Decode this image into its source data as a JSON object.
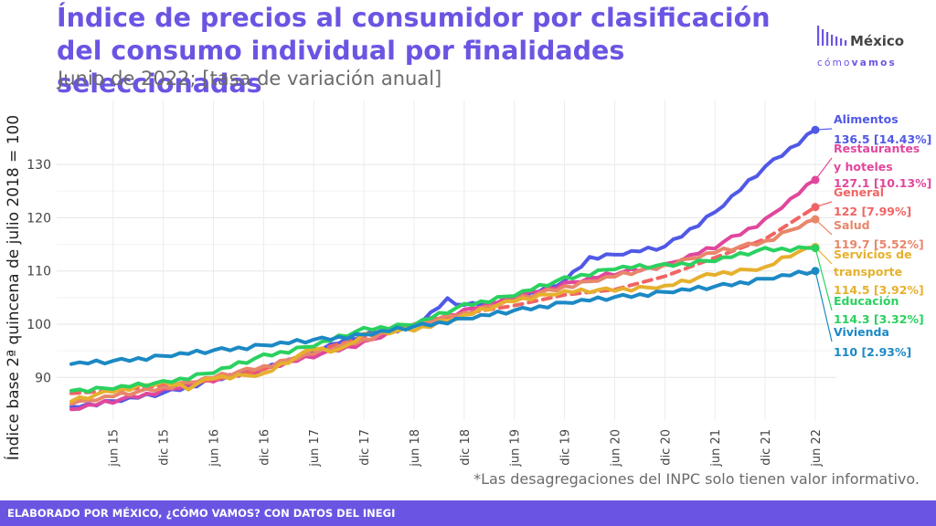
{
  "header": {
    "title": "Índice de precios al consumidor por clasificación del consumo individual por finalidades seleccionadas",
    "subtitle": "Junio de 2022; [tasa de variación anual]"
  },
  "logo": {
    "name": "México",
    "tag_light": "cómo",
    "tag_bold": "vamos",
    "color": "#6A55E3"
  },
  "note": "*Las desagregaciones del INPC solo tienen valor informativo.",
  "footer": {
    "text": "ELABORADO POR MÉXICO, ¿CÓMO VAMOS? CON DATOS DEL INEGI",
    "color": "#6A55E3"
  },
  "chart_data": {
    "type": "line",
    "ylabel": "Índice base 2ª quincena de julio 2018 = 100",
    "xlabel": "",
    "x_ticks": [
      "jun 15",
      "dic 15",
      "jun 16",
      "dic 16",
      "jun 17",
      "dic 17",
      "jun 18",
      "dic 18",
      "jun 19",
      "dic 19",
      "jun 20",
      "dic 20",
      "jun 21",
      "dic 21",
      "jun 22"
    ],
    "y_ticks": [
      90,
      100,
      110,
      120,
      130
    ],
    "ylim": [
      83,
      139
    ],
    "x_range": [
      "2015-01",
      "2022-06"
    ],
    "grid": true,
    "series": [
      {
        "name": "Alimentos",
        "color": "#5059E6",
        "dashed": false,
        "end_label": "136.5 [14.43%]",
        "anchors": [
          [
            "2015-01",
            84.5
          ],
          [
            "2015-06",
            85.5
          ],
          [
            "2015-12",
            87.0
          ],
          [
            "2016-06",
            89.5
          ],
          [
            "2016-12",
            91.5
          ],
          [
            "2017-06",
            95.0
          ],
          [
            "2017-12",
            98.0
          ],
          [
            "2018-06",
            99.5
          ],
          [
            "2018-10",
            104.5
          ],
          [
            "2018-12",
            103.5
          ],
          [
            "2019-06",
            104.5
          ],
          [
            "2019-12",
            108.0
          ],
          [
            "2020-03",
            112.5
          ],
          [
            "2020-06",
            113.0
          ],
          [
            "2020-12",
            114.5
          ],
          [
            "2021-06",
            121.0
          ],
          [
            "2021-12",
            129.5
          ],
          [
            "2022-06",
            136.5
          ]
        ]
      },
      {
        "name": "Restaurantes y hoteles",
        "color": "#E0479C",
        "dashed": false,
        "end_label": "127.1 [10.13%]",
        "anchors": [
          [
            "2015-01",
            84.0
          ],
          [
            "2015-06",
            85.5
          ],
          [
            "2015-12",
            87.5
          ],
          [
            "2016-06",
            89.5
          ],
          [
            "2016-12",
            91.5
          ],
          [
            "2017-06",
            94.0
          ],
          [
            "2017-12",
            96.5
          ],
          [
            "2018-06",
            100.0
          ],
          [
            "2018-12",
            102.5
          ],
          [
            "2019-06",
            105.0
          ],
          [
            "2019-12",
            107.5
          ],
          [
            "2020-06",
            109.5
          ],
          [
            "2020-12",
            111.0
          ],
          [
            "2021-06",
            114.5
          ],
          [
            "2021-12",
            119.5
          ],
          [
            "2022-06",
            127.1
          ]
        ]
      },
      {
        "name": "General",
        "color": "#F06464",
        "dashed": true,
        "end_label": "122 [7.99%]",
        "anchors": [
          [
            "2015-01",
            87.0
          ],
          [
            "2015-06",
            87.5
          ],
          [
            "2015-12",
            88.5
          ],
          [
            "2016-06",
            89.5
          ],
          [
            "2016-12",
            91.5
          ],
          [
            "2017-06",
            95.0
          ],
          [
            "2017-12",
            97.5
          ],
          [
            "2018-06",
            100.0
          ],
          [
            "2018-12",
            102.0
          ],
          [
            "2019-06",
            103.5
          ],
          [
            "2019-12",
            105.5
          ],
          [
            "2020-06",
            106.5
          ],
          [
            "2020-12",
            109.0
          ],
          [
            "2021-06",
            112.5
          ],
          [
            "2021-12",
            116.0
          ],
          [
            "2022-06",
            122.0
          ]
        ]
      },
      {
        "name": "Salud",
        "color": "#E8866A",
        "dashed": false,
        "end_label": "119.7 [5.52%]",
        "anchors": [
          [
            "2015-01",
            85.0
          ],
          [
            "2015-06",
            86.5
          ],
          [
            "2015-12",
            88.0
          ],
          [
            "2016-06",
            90.0
          ],
          [
            "2016-12",
            92.0
          ],
          [
            "2017-06",
            94.5
          ],
          [
            "2017-12",
            97.0
          ],
          [
            "2018-06",
            100.0
          ],
          [
            "2018-12",
            102.0
          ],
          [
            "2019-06",
            104.5
          ],
          [
            "2019-12",
            107.0
          ],
          [
            "2020-06",
            109.0
          ],
          [
            "2020-12",
            111.0
          ],
          [
            "2021-06",
            113.5
          ],
          [
            "2021-12",
            115.5
          ],
          [
            "2022-06",
            119.7
          ]
        ]
      },
      {
        "name": "Servicios de transporte",
        "color": "#E6B02E",
        "dashed": false,
        "end_label": "114.5 [3.92%]",
        "anchors": [
          [
            "2015-01",
            85.5
          ],
          [
            "2015-06",
            87.5
          ],
          [
            "2015-12",
            89.0
          ],
          [
            "2016-03",
            88.0
          ],
          [
            "2016-06",
            90.0
          ],
          [
            "2016-12",
            90.5
          ],
          [
            "2017-06",
            95.5
          ],
          [
            "2017-09",
            95.0
          ],
          [
            "2017-12",
            98.0
          ],
          [
            "2018-06",
            99.0
          ],
          [
            "2018-12",
            101.5
          ],
          [
            "2019-06",
            104.5
          ],
          [
            "2019-12",
            106.0
          ],
          [
            "2020-06",
            106.5
          ],
          [
            "2020-12",
            107.0
          ],
          [
            "2021-06",
            109.5
          ],
          [
            "2021-09",
            110.0
          ],
          [
            "2021-12",
            110.5
          ],
          [
            "2022-03",
            113.0
          ],
          [
            "2022-06",
            114.5
          ]
        ]
      },
      {
        "name": "Educación",
        "color": "#2BD160",
        "dashed": false,
        "end_label": "114.3 [3.32%]",
        "anchors": [
          [
            "2015-01",
            87.5
          ],
          [
            "2015-06",
            88.0
          ],
          [
            "2015-12",
            89.0
          ],
          [
            "2016-06",
            91.0
          ],
          [
            "2016-12",
            94.0
          ],
          [
            "2017-06",
            96.0
          ],
          [
            "2017-12",
            99.0
          ],
          [
            "2018-06",
            100.0
          ],
          [
            "2018-12",
            103.5
          ],
          [
            "2019-06",
            105.5
          ],
          [
            "2019-12",
            108.5
          ],
          [
            "2020-06",
            110.5
          ],
          [
            "2020-12",
            111.0
          ],
          [
            "2021-06",
            112.0
          ],
          [
            "2021-12",
            114.0
          ],
          [
            "2022-06",
            114.3
          ]
        ]
      },
      {
        "name": "Vivienda",
        "color": "#1C89C4",
        "dashed": false,
        "end_label": "110 [2.93%]",
        "anchors": [
          [
            "2015-01",
            92.5
          ],
          [
            "2015-06",
            93.0
          ],
          [
            "2015-12",
            94.0
          ],
          [
            "2016-06",
            95.0
          ],
          [
            "2016-12",
            96.0
          ],
          [
            "2017-06",
            97.0
          ],
          [
            "2017-12",
            98.0
          ],
          [
            "2018-06",
            99.5
          ],
          [
            "2018-12",
            101.0
          ],
          [
            "2019-06",
            102.5
          ],
          [
            "2019-12",
            104.0
          ],
          [
            "2020-06",
            105.0
          ],
          [
            "2020-12",
            106.0
          ],
          [
            "2021-06",
            107.0
          ],
          [
            "2021-12",
            108.5
          ],
          [
            "2022-06",
            110.0
          ]
        ]
      }
    ]
  }
}
